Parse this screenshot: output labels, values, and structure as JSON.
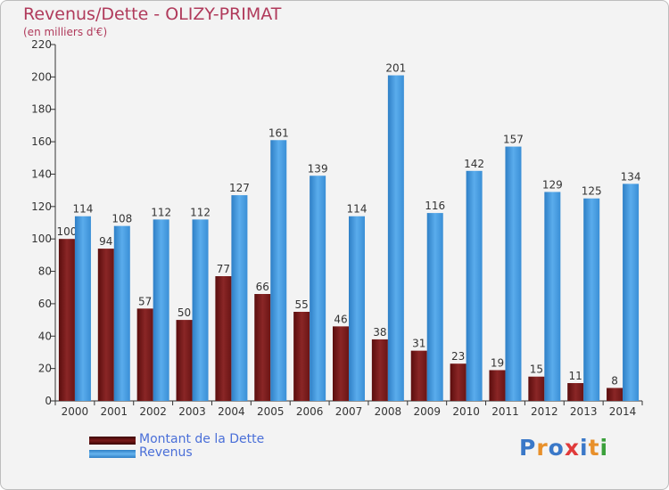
{
  "chart_data": {
    "type": "bar",
    "title": "Revenus/Dette - OLIZY-PRIMAT",
    "subtitle": "(en milliers d'€)",
    "categories": [
      "2000",
      "2001",
      "2002",
      "2003",
      "2004",
      "2005",
      "2006",
      "2007",
      "2008",
      "2009",
      "2010",
      "2011",
      "2012",
      "2013",
      "2014"
    ],
    "series": [
      {
        "name": "Montant de la Dette",
        "color": "#7a1a1a",
        "values": [
          100,
          94,
          57,
          50,
          77,
          66,
          55,
          46,
          38,
          31,
          23,
          19,
          15,
          11,
          8
        ]
      },
      {
        "name": "Revenus",
        "color": "#3d95dc",
        "values": [
          114,
          108,
          112,
          112,
          127,
          161,
          139,
          114,
          201,
          116,
          142,
          157,
          129,
          125,
          134
        ]
      }
    ],
    "ylim": [
      0,
      220
    ],
    "yticks": [
      0,
      20,
      40,
      60,
      80,
      100,
      120,
      140,
      160,
      180,
      200,
      220
    ],
    "grid": false,
    "legend_position": "bottom-left"
  },
  "brand": {
    "logo_text": "Proxiti"
  }
}
